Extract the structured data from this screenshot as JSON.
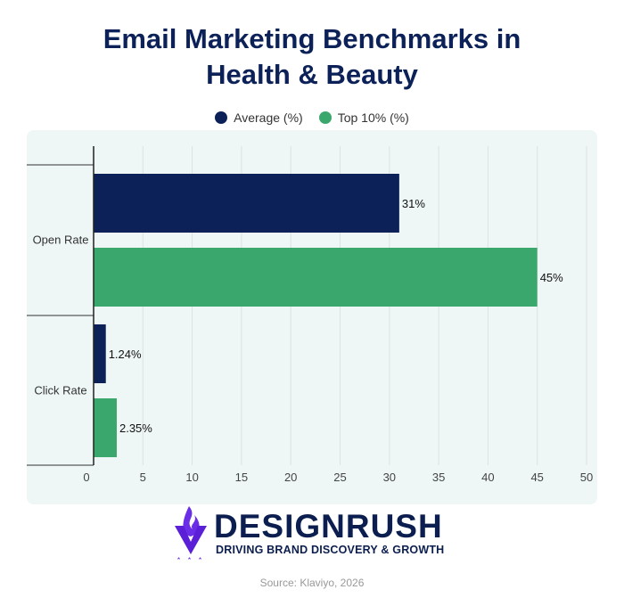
{
  "header": {
    "title_line1": "Email Marketing Benchmarks in",
    "title_line2": "Health & Beauty"
  },
  "legend": [
    {
      "label": "Average (%)",
      "color": "#0b2158"
    },
    {
      "label": "Top 10% (%)",
      "color": "#3aa86c"
    }
  ],
  "chart_data": {
    "type": "bar",
    "orientation": "horizontal",
    "title": "Email Marketing Benchmarks in Health & Beauty",
    "categories": [
      "Open Rate",
      "Click Rate"
    ],
    "series": [
      {
        "name": "Average (%)",
        "color": "#0b2158",
        "values": [
          31,
          1.24
        ],
        "labels": [
          "31%",
          "1.24%"
        ]
      },
      {
        "name": "Top 10% (%)",
        "color": "#3aa86c",
        "values": [
          45,
          2.35
        ],
        "labels": [
          "45%",
          "2.35%"
        ]
      }
    ],
    "xlim": [
      0,
      50
    ],
    "xticks": [
      "0",
      "5",
      "10",
      "15",
      "20",
      "25",
      "30",
      "35",
      "40",
      "45",
      "50"
    ],
    "grid": "vertical",
    "legend_position": "top-center"
  },
  "logo": {
    "name": "DESIGNRUSH",
    "tagline": "DRIVING BRAND DISCOVERY & GROWTH",
    "icon": "flame-v-icon",
    "accent_color": "#6a2ee8"
  },
  "footer": {
    "source": "Source: Klaviyo, 2026"
  }
}
